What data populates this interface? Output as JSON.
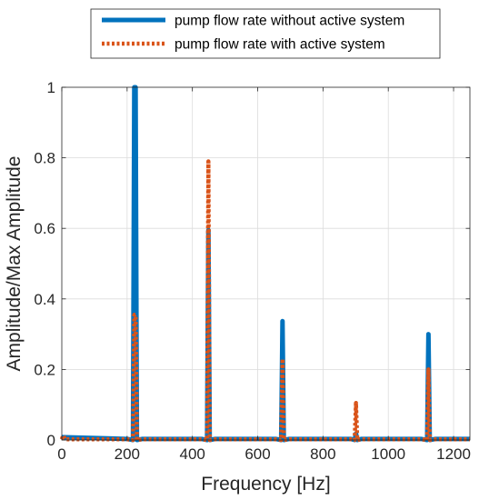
{
  "chart_data": {
    "type": "line",
    "title": "",
    "xlabel": "Frequency [Hz]",
    "ylabel": "Amplitude/Max Amplitude",
    "xlim": [
      0,
      1250
    ],
    "ylim": [
      0,
      1
    ],
    "xticks": [
      0,
      200,
      400,
      600,
      800,
      1000,
      1200
    ],
    "yticks": [
      0,
      0.2,
      0.4,
      0.6,
      0.8,
      1
    ],
    "xtick_labels": [
      "0",
      "200",
      "400",
      "600",
      "800",
      "1000",
      "1200"
    ],
    "ytick_labels": [
      "0",
      "0.2",
      "0.4",
      "0.6",
      "0.8",
      "1"
    ],
    "grid": true,
    "legend_position": "top",
    "series": [
      {
        "name": "pump flow rate without active system",
        "color": "#0072BD",
        "style": "solid",
        "x": [
          0,
          200,
          218,
          222,
          226,
          230,
          247,
          428,
          445,
          449,
          453,
          470,
          655,
          672,
          676,
          680,
          697,
          885,
          897,
          901,
          905,
          918,
          1100,
          1119,
          1123,
          1127,
          1145,
          1250
        ],
        "y": [
          0.008,
          0.003,
          0,
          1.0,
          1.0,
          0,
          0.003,
          0.003,
          0,
          0.595,
          0,
          0.003,
          0.003,
          0,
          0.337,
          0,
          0.003,
          0.003,
          0,
          0.018,
          0,
          0.003,
          0.003,
          0,
          0.3,
          0,
          0.003,
          0.003
        ]
      },
      {
        "name": "pump flow rate with active system",
        "color": "#D95319",
        "style": "dotted",
        "x": [
          0,
          4,
          10,
          200,
          218,
          222,
          226,
          230,
          247,
          428,
          445,
          449,
          453,
          470,
          655,
          672,
          676,
          680,
          697,
          885,
          897,
          901,
          905,
          918,
          1100,
          1119,
          1123,
          1127,
          1145,
          1250
        ],
        "y": [
          0.002,
          0.013,
          0.002,
          0.002,
          0,
          0.355,
          0.355,
          0,
          0.002,
          0.002,
          0,
          0.79,
          0,
          0.002,
          0.002,
          0,
          0.23,
          0,
          0.002,
          0.002,
          0,
          0.105,
          0,
          0.002,
          0.002,
          0,
          0.2,
          0,
          0.002,
          0.002
        ]
      }
    ]
  }
}
